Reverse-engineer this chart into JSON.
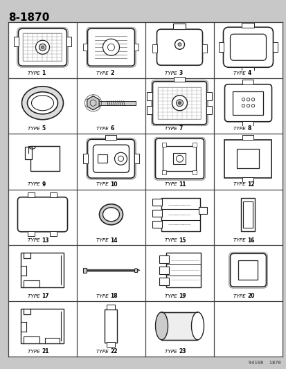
{
  "title": "8-1870",
  "bg_color": "#c8c8c8",
  "grid_rows": 6,
  "grid_cols": 4,
  "types": [
    "TYPE 1",
    "TYPE 2",
    "TYPE 3",
    "TYPE 4",
    "TYPE 5",
    "TYPE 6",
    "TYPE 7",
    "TYPE 8",
    "TYPE 9",
    "TYPE 10",
    "TYPE 11",
    "TYPE 12",
    "TYPE 13",
    "TYPE 14",
    "TYPE 15",
    "TYPE 16",
    "TYPE 17",
    "TYPE 18",
    "TYPE 19",
    "TYPE 20",
    "TYPE 21",
    "TYPE 22",
    "TYPE 23",
    ""
  ],
  "watermark": "94108  1870",
  "line_color": "#222222"
}
